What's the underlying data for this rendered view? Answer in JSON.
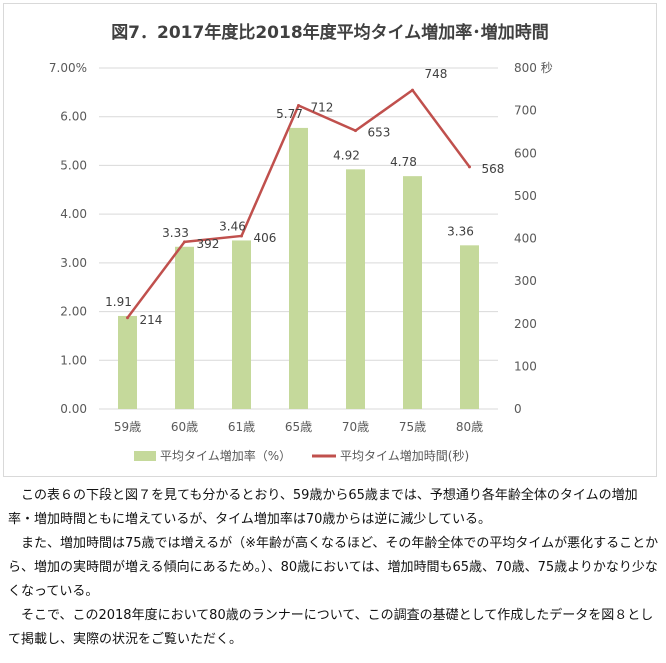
{
  "chart_data": {
    "type": "bar+line",
    "title": "図7．2017年度比2018年度平均タイム増加率･増加時間",
    "categories": [
      "59歳",
      "60歳",
      "61歳",
      "65歳",
      "70歳",
      "75歳",
      "80歳"
    ],
    "series": [
      {
        "name": "平均タイム増加率（%）",
        "type": "bar",
        "axis": "left",
        "values": [
          1.91,
          3.33,
          3.46,
          5.77,
          4.92,
          4.78,
          3.36
        ],
        "labels": [
          "1.91",
          "3.33",
          "3.46",
          "5.77",
          "4.92",
          "4.78",
          "3.36"
        ]
      },
      {
        "name": "平均タイム増加時間(秒)",
        "type": "line",
        "axis": "right",
        "values": [
          214,
          392,
          406,
          712,
          653,
          748,
          568
        ],
        "labels": [
          "214",
          "392",
          "406",
          "712",
          "653",
          "748",
          "568"
        ]
      }
    ],
    "y_left": {
      "lim": [
        0,
        7
      ],
      "ticks": [
        "0.00",
        "1.00",
        "2.00",
        "3.00",
        "4.00",
        "5.00",
        "6.00",
        "7.00%"
      ]
    },
    "y_right": {
      "lim": [
        0,
        800
      ],
      "ticks": [
        "0",
        "100",
        "200",
        "300",
        "400",
        "500",
        "600",
        "700",
        "800 秒"
      ]
    },
    "grid": true,
    "legend_position": "bottom",
    "colors": {
      "bar": "#c5d99b",
      "line": "#c0504d",
      "grid": "#d9d9d9"
    }
  },
  "paragraphs": [
    "この表６の下段と図７を見ても分かるとおり、59歳から65歳までは、予想通り各年齢全体のタイムの増加率・増加時間ともに増えているが、タイム増加率は70歳からは逆に減少している。",
    "また、増加時間は75歳では増えるが（※年齢が高くなるほど、その年齢全体での平均タイムが悪化することから、増加の実時間が増える傾向にあるため。）、80歳においては、増加時間も65歳、70歳、75歳よりかなり少なくなっている。",
    "そこで、この2018年度において80歳のランナーについて、この調査の基礎として作成したデータを図８として掲載し、実際の状況をご覧いただく。"
  ]
}
